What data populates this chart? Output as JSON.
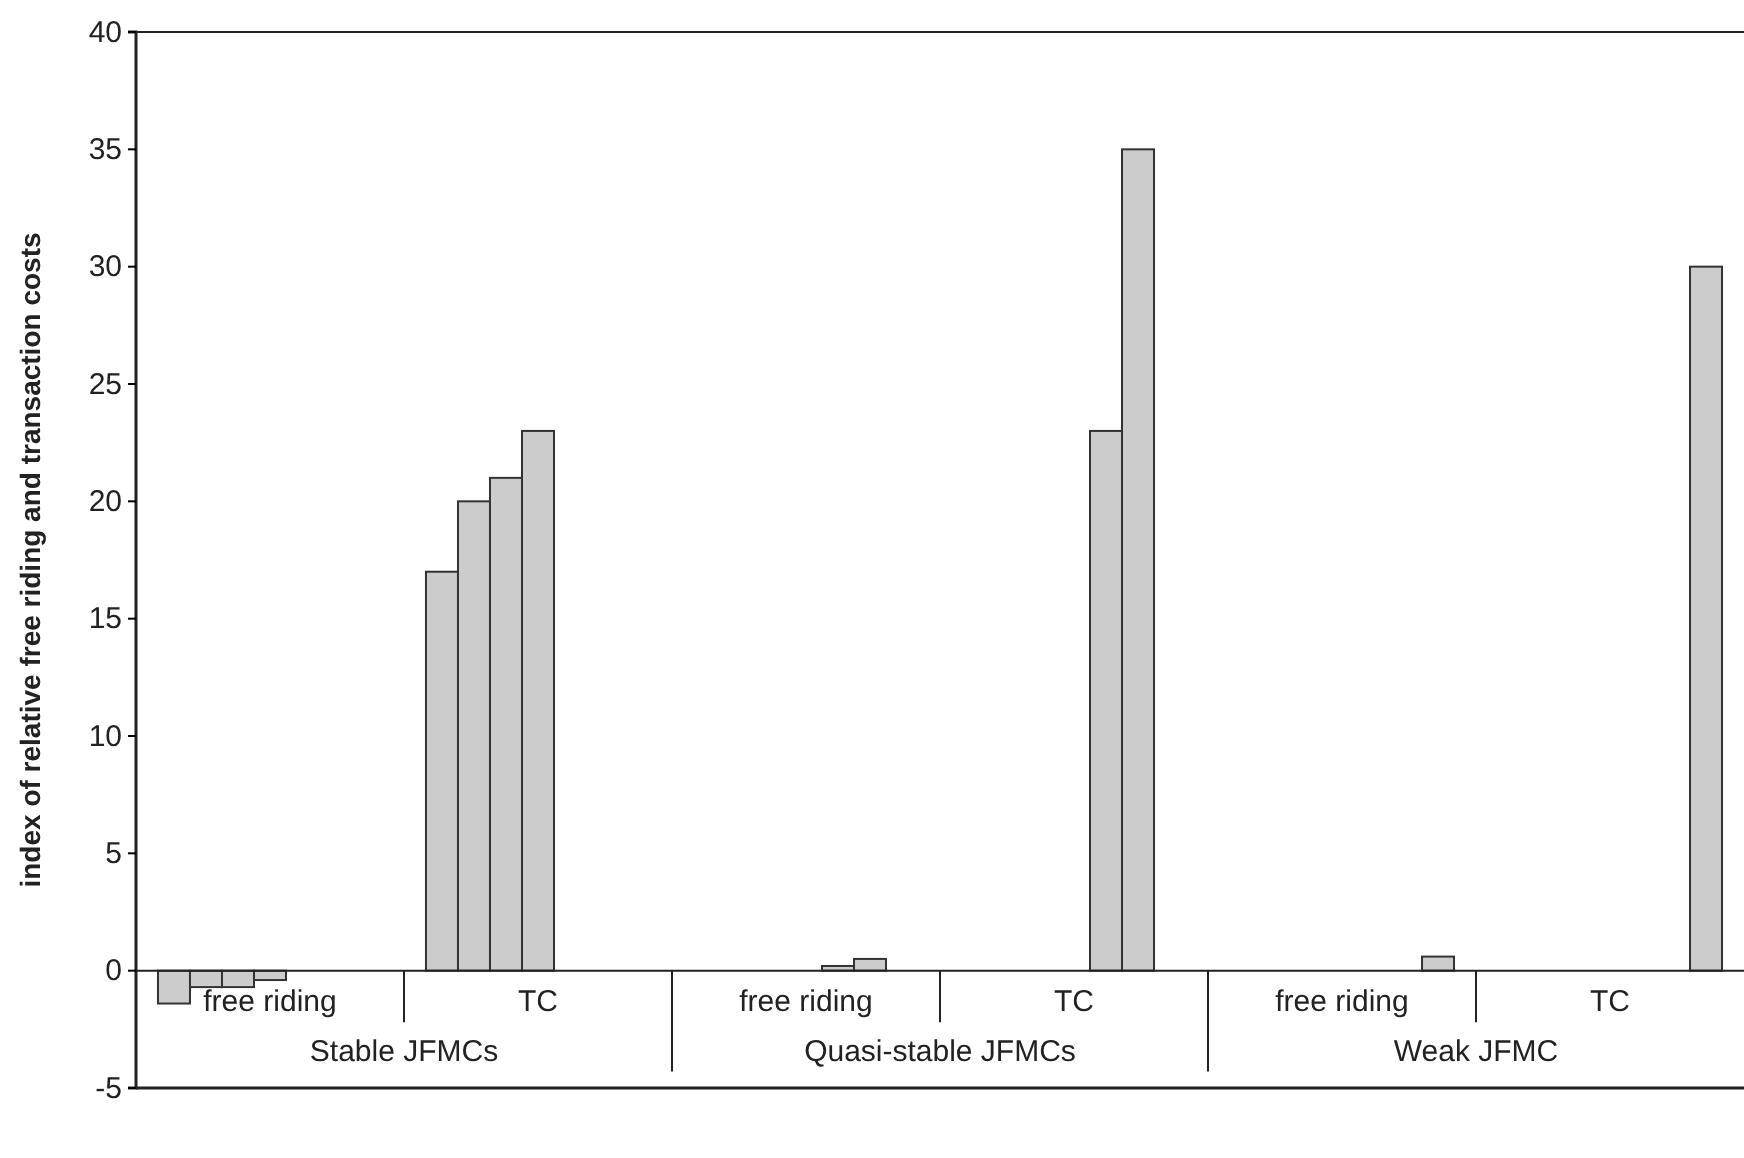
{
  "chart_data": {
    "type": "bar",
    "ylabel": "index of relative free riding and transaction costs",
    "categories": [
      "free riding",
      "TC",
      "free riding",
      "TC",
      "free riding",
      "TC"
    ],
    "annotations": [
      "Stable JFMCs",
      "Quasi-stable JFMCs",
      "Weak JFMC"
    ],
    "series": [
      {
        "color": "#cccccc",
        "values": [
          -1.4,
          17,
          null,
          null,
          null,
          null
        ]
      },
      {
        "color": "#cccccc",
        "values": [
          -0.7,
          20,
          null,
          null,
          null,
          null
        ]
      },
      {
        "color": "#cccccc",
        "values": [
          -0.7,
          21,
          null,
          null,
          null,
          null
        ]
      },
      {
        "color": "#cccccc",
        "values": [
          -0.4,
          23,
          null,
          null,
          null,
          null
        ]
      },
      {
        "color": "#cccccc",
        "values": [
          null,
          null,
          0.2,
          23,
          null,
          null
        ]
      },
      {
        "color": "#cccccc",
        "values": [
          null,
          null,
          0.5,
          35,
          null,
          null
        ]
      },
      {
        "color": "#cccccc",
        "values": [
          null,
          null,
          null,
          null,
          0.6,
          30
        ]
      }
    ],
    "ylim": [
      -5,
      40
    ],
    "yticks": [
      -5,
      0,
      5,
      10,
      15,
      20,
      25,
      30,
      35,
      40
    ],
    "grid": false
  }
}
